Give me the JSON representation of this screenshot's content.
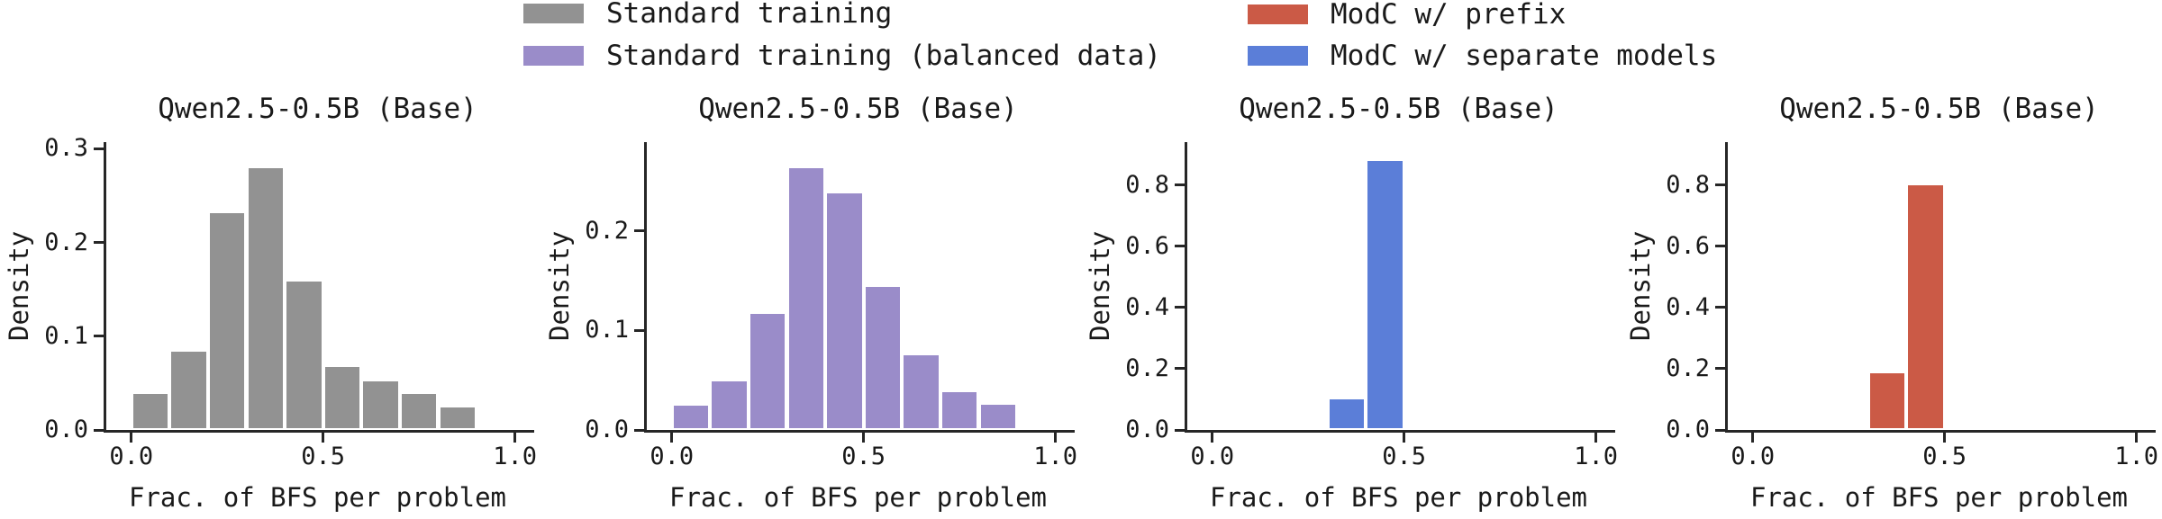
{
  "legend": {
    "entries": [
      {
        "label": "Standard training",
        "color": "#929292"
      },
      {
        "label": "Standard training (balanced data)",
        "color": "#9a8cc9"
      },
      {
        "label": "ModC w/ prefix",
        "color": "#cb5a46"
      },
      {
        "label": "ModC w/ separate models",
        "color": "#5b7ed8"
      }
    ]
  },
  "chart_data": [
    {
      "type": "bar",
      "variant": "histogram",
      "title": "Qwen2.5-0.5B (Base)",
      "xlabel": "Frac. of BFS per problem",
      "ylabel": "Density",
      "series_name": "Standard training",
      "color": "#929292",
      "bin_edges": [
        0.0,
        0.1,
        0.2,
        0.3,
        0.4,
        0.5,
        0.6,
        0.7,
        0.8,
        0.9,
        1.0
      ],
      "values": [
        0.04,
        0.085,
        0.233,
        0.281,
        0.16,
        0.069,
        0.054,
        0.04,
        0.026,
        0.003
      ],
      "xlim": [
        -0.065,
        1.05
      ],
      "ylim": [
        0,
        0.307
      ],
      "grid": false,
      "xticks": [
        {
          "v": 0.0,
          "label": "0.0"
        },
        {
          "v": 0.5,
          "label": "0.5"
        },
        {
          "v": 1.0,
          "label": "1.0"
        }
      ],
      "yticks": [
        {
          "v": 0.0,
          "label": "0.0"
        },
        {
          "v": 0.1,
          "label": "0.1"
        },
        {
          "v": 0.2,
          "label": "0.2"
        },
        {
          "v": 0.3,
          "label": "0.3"
        }
      ]
    },
    {
      "type": "bar",
      "variant": "histogram",
      "title": "Qwen2.5-0.5B (Base)",
      "xlabel": "Frac. of BFS per problem",
      "ylabel": "Density",
      "series_name": "Standard training (balanced data)",
      "color": "#9a8cc9",
      "bin_edges": [
        0.0,
        0.1,
        0.2,
        0.3,
        0.4,
        0.5,
        0.6,
        0.7,
        0.8,
        0.9,
        1.0
      ],
      "values": [
        0.026,
        0.051,
        0.118,
        0.265,
        0.239,
        0.145,
        0.077,
        0.04,
        0.027,
        0.003
      ],
      "xlim": [
        -0.065,
        1.05
      ],
      "ylim": [
        0,
        0.289
      ],
      "grid": false,
      "xticks": [
        {
          "v": 0.0,
          "label": "0.0"
        },
        {
          "v": 0.5,
          "label": "0.5"
        },
        {
          "v": 1.0,
          "label": "1.0"
        }
      ],
      "yticks": [
        {
          "v": 0.0,
          "label": "0.0"
        },
        {
          "v": 0.1,
          "label": "0.1"
        },
        {
          "v": 0.2,
          "label": "0.2"
        }
      ]
    },
    {
      "type": "bar",
      "variant": "histogram",
      "title": "Qwen2.5-0.5B (Base)",
      "xlabel": "Frac. of BFS per problem",
      "ylabel": "Density",
      "series_name": "ModC w/ separate models",
      "color": "#5b7ed8",
      "bin_edges": [
        0.0,
        0.1,
        0.2,
        0.3,
        0.4,
        0.5,
        0.6,
        0.7,
        0.8,
        0.9,
        1.0
      ],
      "values": [
        0,
        0,
        0,
        0.105,
        0.885,
        0,
        0,
        0,
        0,
        0
      ],
      "xlim": [
        -0.065,
        1.05
      ],
      "ylim": [
        0,
        0.94
      ],
      "grid": false,
      "xticks": [
        {
          "v": 0.0,
          "label": "0.0"
        },
        {
          "v": 0.5,
          "label": "0.5"
        },
        {
          "v": 1.0,
          "label": "1.0"
        }
      ],
      "yticks": [
        {
          "v": 0.0,
          "label": "0.0"
        },
        {
          "v": 0.2,
          "label": "0.2"
        },
        {
          "v": 0.4,
          "label": "0.4"
        },
        {
          "v": 0.6,
          "label": "0.6"
        },
        {
          "v": 0.8,
          "label": "0.8"
        }
      ]
    },
    {
      "type": "bar",
      "variant": "histogram",
      "title": "Qwen2.5-0.5B (Base)",
      "xlabel": "Frac. of BFS per problem",
      "ylabel": "Density",
      "series_name": "ModC w/ prefix",
      "color": "#cb5a46",
      "bin_edges": [
        0.0,
        0.1,
        0.2,
        0.3,
        0.4,
        0.5,
        0.6,
        0.7,
        0.8,
        0.9,
        1.0
      ],
      "values": [
        0,
        0,
        0,
        0.19,
        0.805,
        0,
        0,
        0,
        0,
        0
      ],
      "xlim": [
        -0.065,
        1.05
      ],
      "ylim": [
        0,
        0.94
      ],
      "grid": false,
      "xticks": [
        {
          "v": 0.0,
          "label": "0.0"
        },
        {
          "v": 0.5,
          "label": "0.5"
        },
        {
          "v": 1.0,
          "label": "1.0"
        }
      ],
      "yticks": [
        {
          "v": 0.0,
          "label": "0.0"
        },
        {
          "v": 0.2,
          "label": "0.2"
        },
        {
          "v": 0.4,
          "label": "0.4"
        },
        {
          "v": 0.6,
          "label": "0.6"
        },
        {
          "v": 0.8,
          "label": "0.8"
        }
      ]
    }
  ]
}
